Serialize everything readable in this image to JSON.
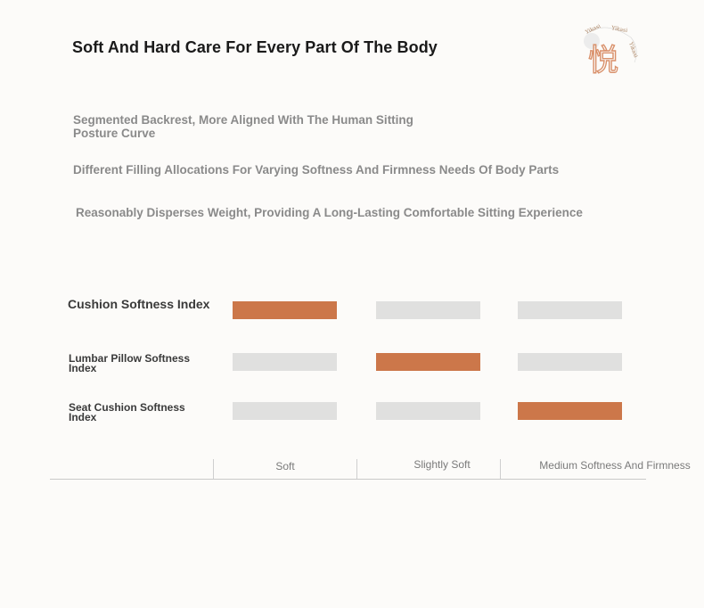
{
  "header": {
    "title": "Soft And Hard Care For Every Part Of The Body",
    "logo_text": "悦",
    "logo_ring_text": "Yikasi  Yikasi  Yikasi"
  },
  "features": [
    "Segmented Backrest, More Aligned With The Human Sitting Posture Curve",
    "Different Filling Allocations For Varying Softness And Firmness Needs Of Body Parts",
    "Reasonably Disperses Weight, Providing A Long-Lasting Comfortable Sitting Experience"
  ],
  "softness_chart": {
    "levels": [
      "Soft",
      "Slightly Soft",
      "Medium Softness And Firmness"
    ],
    "rows": [
      {
        "label": "Cushion Softness Index",
        "selected_level": "Soft"
      },
      {
        "label": "Lumbar Pillow Softness Index",
        "selected_level": "Slightly Soft"
      },
      {
        "label": "Seat Cushion Softness Index",
        "selected_level": "Medium Softness And Firmness"
      }
    ],
    "colors": {
      "active": "#cc774a",
      "inactive": "#e0e0df"
    }
  }
}
